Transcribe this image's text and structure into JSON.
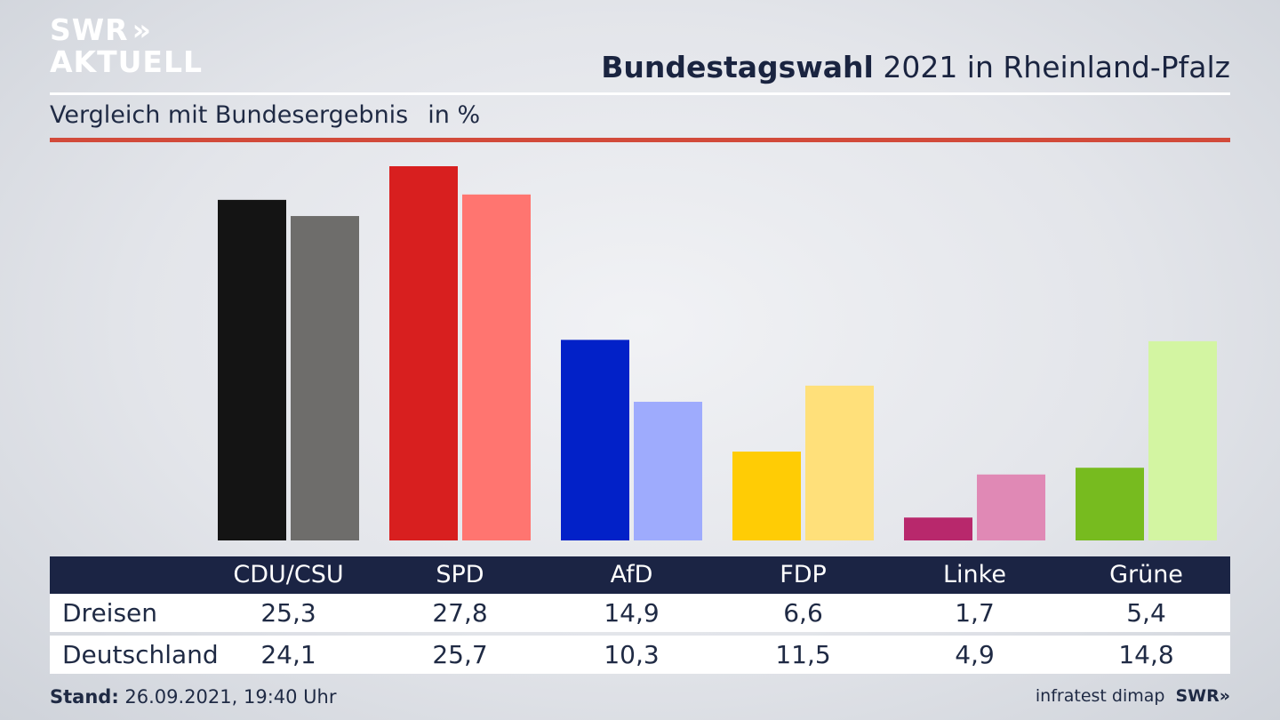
{
  "brand": {
    "line1": "SWR",
    "line2": "AKTUELL",
    "arrows": "»"
  },
  "header": {
    "title_bold": "Bundestagswahl",
    "title_rest": " 2021 in Rheinland-Pfalz",
    "subtitle": "Vergleich mit Bundesergebnis",
    "unit": "in %"
  },
  "chart_data": {
    "type": "bar",
    "categories": [
      "CDU/CSU",
      "SPD",
      "AfD",
      "FDP",
      "Linke",
      "Grüne"
    ],
    "series": [
      {
        "name": "Dreisen",
        "values": [
          25.3,
          27.8,
          14.9,
          6.6,
          1.7,
          5.4
        ]
      },
      {
        "name": "Deutschland",
        "values": [
          24.1,
          25.7,
          10.3,
          11.5,
          4.9,
          14.8
        ]
      }
    ],
    "value_labels": [
      [
        "25,3",
        "27,8",
        "14,9",
        "6,6",
        "1,7",
        "5,4"
      ],
      [
        "24,1",
        "25,7",
        "10,3",
        "11,5",
        "4,9",
        "14,8"
      ]
    ],
    "colors": {
      "series0": [
        "#141414",
        "#d81f1f",
        "#0221c8",
        "#ffcc05",
        "#b8286c",
        "#77bb1f"
      ],
      "series1": [
        "#6e6d6b",
        "#ff7570",
        "#9eabfd",
        "#ffe07a",
        "#e089b5",
        "#d3f5a2"
      ]
    },
    "ylim": [
      0,
      27.8
    ],
    "grid": false,
    "legend": "table below chart"
  },
  "footer": {
    "stand_label": "Stand:",
    "stand_value": " 26.09.2021, 19:40 Uhr",
    "source": "infratest dimap",
    "logo": "SWR»"
  }
}
